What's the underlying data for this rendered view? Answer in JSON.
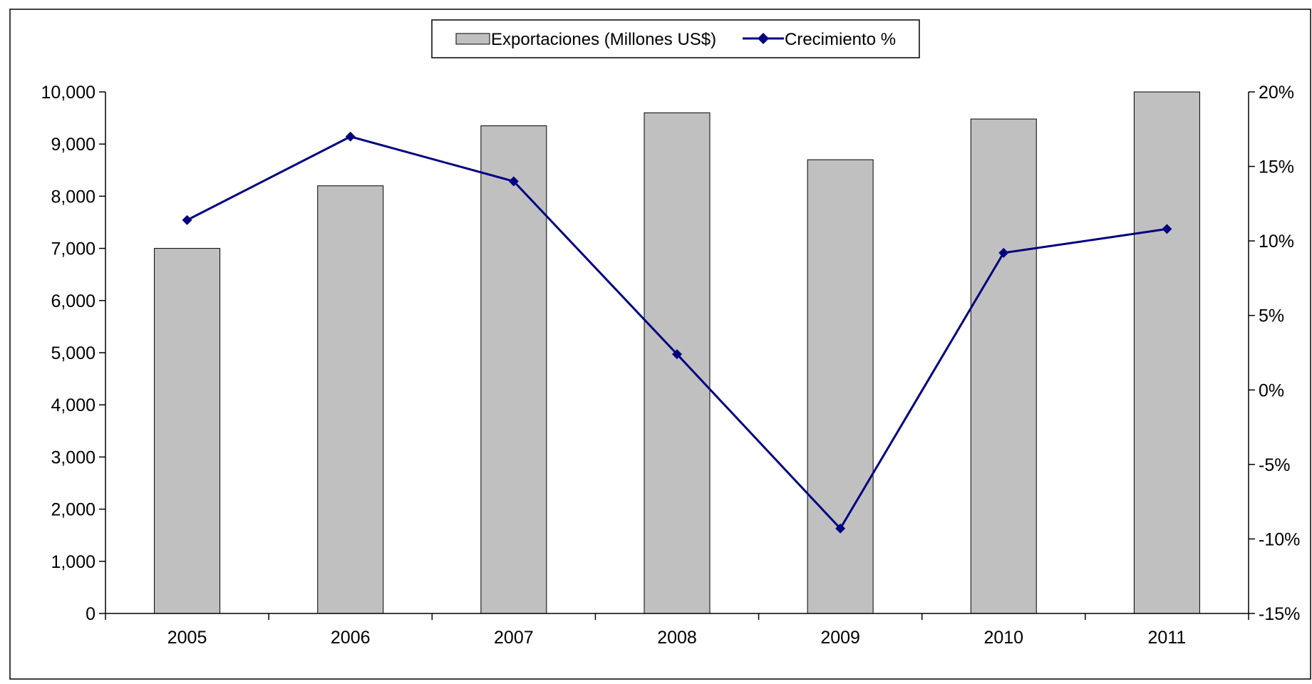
{
  "chart_data": {
    "type": "bar",
    "categories": [
      "2005",
      "2006",
      "2007",
      "2008",
      "2009",
      "2010",
      "2011"
    ],
    "series": [
      {
        "name": "Exportaciones (Millones US$)",
        "type": "bar",
        "axis": "left",
        "color": "#c0c0c0",
        "values": [
          7000,
          8200,
          9350,
          9600,
          8700,
          9480,
          10000
        ]
      },
      {
        "name": "Crecimiento %",
        "type": "line",
        "axis": "right",
        "color": "#000080",
        "marker": "diamond",
        "values": [
          11.4,
          17.0,
          14.0,
          2.4,
          -9.3,
          9.2,
          10.8
        ]
      }
    ],
    "y_left": {
      "min": 0,
      "max": 10000,
      "ticks": [
        0,
        1000,
        2000,
        3000,
        4000,
        5000,
        6000,
        7000,
        8000,
        9000,
        10000
      ],
      "tick_labels": [
        "0",
        "1,000",
        "2,000",
        "3,000",
        "4,000",
        "5,000",
        "6,000",
        "7,000",
        "8,000",
        "9,000",
        "10,000"
      ]
    },
    "y_right": {
      "min": -15,
      "max": 20,
      "ticks": [
        -15,
        -10,
        -5,
        0,
        5,
        10,
        15,
        20
      ],
      "tick_labels": [
        "-15%",
        "-10%",
        "-5%",
        "0%",
        "5%",
        "10%",
        "15%",
        "20%"
      ]
    },
    "grid": false,
    "legend": "top-center"
  }
}
